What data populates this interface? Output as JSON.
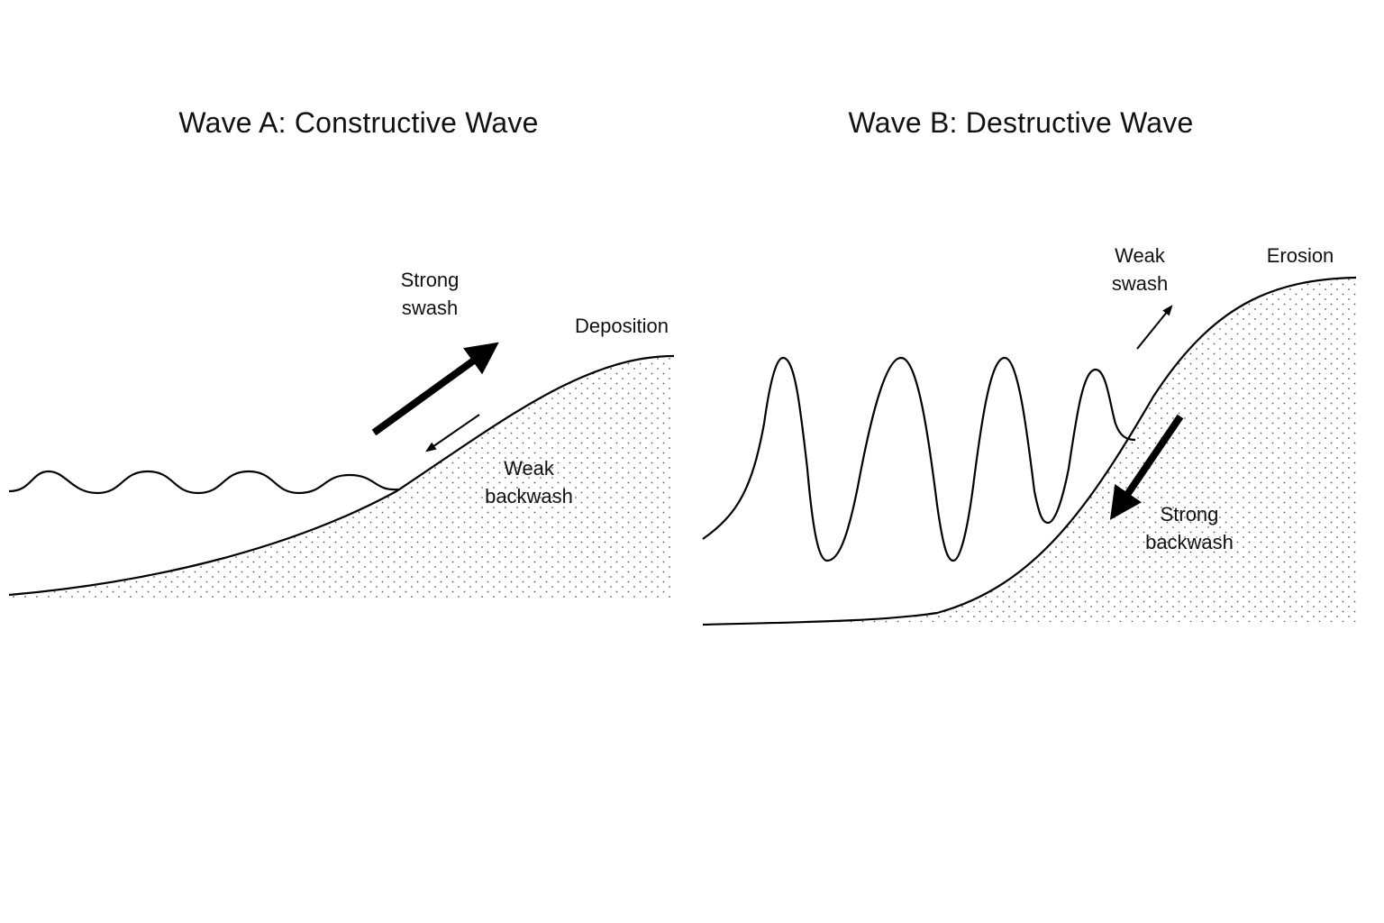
{
  "panel_a": {
    "title": "Wave A: Constructive Wave",
    "swash_label": [
      "Strong",
      "swash"
    ],
    "backwash_label": [
      "Weak",
      "backwash"
    ],
    "deposition_label": "Deposition"
  },
  "panel_b": {
    "title": "Wave B: Destructive Wave",
    "swash_label": [
      "Weak",
      "swash"
    ],
    "backwash_label": [
      "Strong",
      "backwash"
    ],
    "erosion_label": "Erosion"
  },
  "style": {
    "line_color": "#000000",
    "background": "#ffffff",
    "sand_dot_color": "#222222"
  }
}
